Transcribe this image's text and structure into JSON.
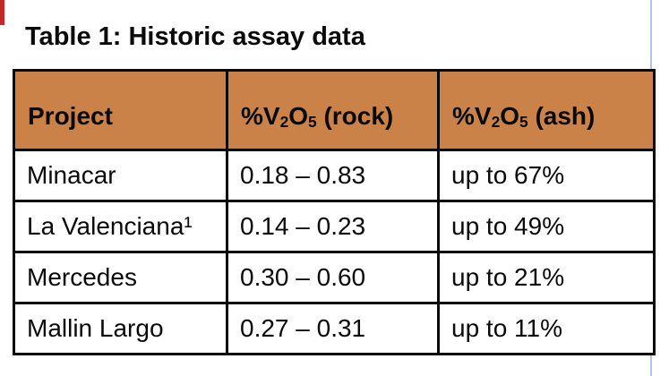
{
  "page": {
    "title": "Table 1: Historic assay data",
    "accents": {
      "header_bg": "#cb8249",
      "red_marker": "#c4262c",
      "blue_guide_line": "#a9cae9",
      "border": "#0a0a0a"
    }
  },
  "table": {
    "columns": [
      {
        "label": "Project"
      },
      {
        "pre": "%V",
        "sub1": "2",
        "mid": "O",
        "sub2": "5",
        "post": " (rock)"
      },
      {
        "pre": "%V",
        "sub1": "2",
        "mid": "O",
        "sub2": "5",
        "post": " (ash)"
      }
    ],
    "rows": [
      {
        "project": "Minacar",
        "rock": "0.18 – 0.83",
        "ash": "up to 67%"
      },
      {
        "project": "La Valenciana¹",
        "rock": "0.14 – 0.23",
        "ash": "up to 49%"
      },
      {
        "project": "Mercedes",
        "rock": "0.30 – 0.60",
        "ash": "up to 21%"
      },
      {
        "project": "Mallin Largo",
        "rock": "0.27 – 0.31",
        "ash": "up to 11%"
      }
    ]
  }
}
